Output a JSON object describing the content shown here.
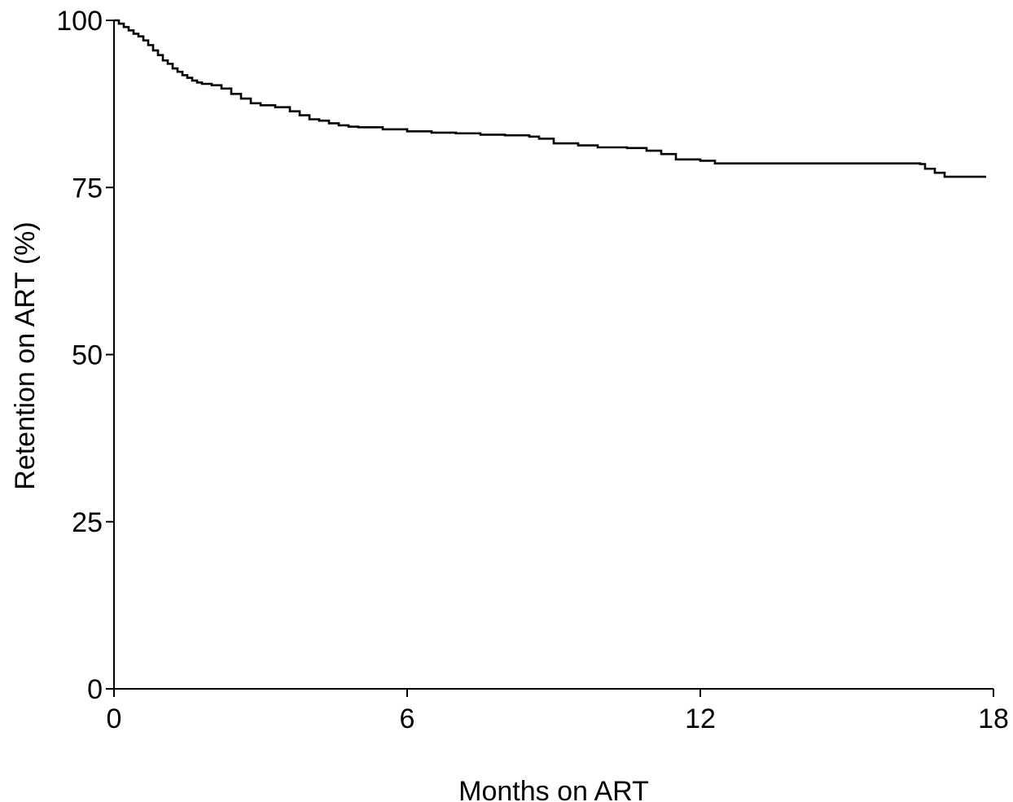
{
  "chart_data": {
    "type": "line",
    "step": true,
    "title": "",
    "xlabel": "Months on ART",
    "ylabel": "Retention on ART (%)",
    "xlim": [
      0,
      18
    ],
    "ylim": [
      0,
      100
    ],
    "xticks": [
      0,
      6,
      12,
      18
    ],
    "yticks": [
      0,
      25,
      50,
      75,
      100
    ],
    "grid": false,
    "legend": "none",
    "line_color": "#000000",
    "series": [
      {
        "x": [
          0,
          0.1,
          0.2,
          0.3,
          0.4,
          0.5,
          0.6,
          0.7,
          0.8,
          0.9,
          1.0,
          1.1,
          1.2,
          1.3,
          1.4,
          1.5,
          1.6,
          1.7,
          1.8,
          2.0,
          2.2,
          2.4,
          2.6,
          2.8,
          3.0,
          3.3,
          3.6,
          3.8,
          4.0,
          4.2,
          4.4,
          4.6,
          4.8,
          5.0,
          5.5,
          6.0,
          6.5,
          7.0,
          7.5,
          8.0,
          8.5,
          8.7,
          9.0,
          9.5,
          9.9,
          10.5,
          10.9,
          11.2,
          11.5,
          12.0,
          12.3,
          13.0,
          14.0,
          15.0,
          16.0,
          16.5,
          16.6,
          16.8,
          17.0,
          17.5,
          17.85
        ],
        "y": [
          100,
          99.5,
          99.0,
          98.5,
          98.0,
          97.6,
          97.0,
          96.3,
          95.5,
          94.8,
          94.0,
          93.5,
          92.8,
          92.3,
          91.8,
          91.4,
          91.0,
          90.7,
          90.5,
          90.3,
          89.8,
          89.0,
          88.3,
          87.6,
          87.3,
          87.0,
          86.4,
          85.8,
          85.2,
          85.0,
          84.6,
          84.3,
          84.1,
          84.0,
          83.7,
          83.4,
          83.2,
          83.1,
          82.9,
          82.8,
          82.6,
          82.3,
          81.6,
          81.3,
          81.0,
          80.9,
          80.5,
          80.0,
          79.2,
          79.0,
          78.6,
          78.6,
          78.6,
          78.6,
          78.6,
          78.5,
          77.8,
          77.2,
          76.6,
          76.6,
          76.6
        ]
      }
    ]
  }
}
